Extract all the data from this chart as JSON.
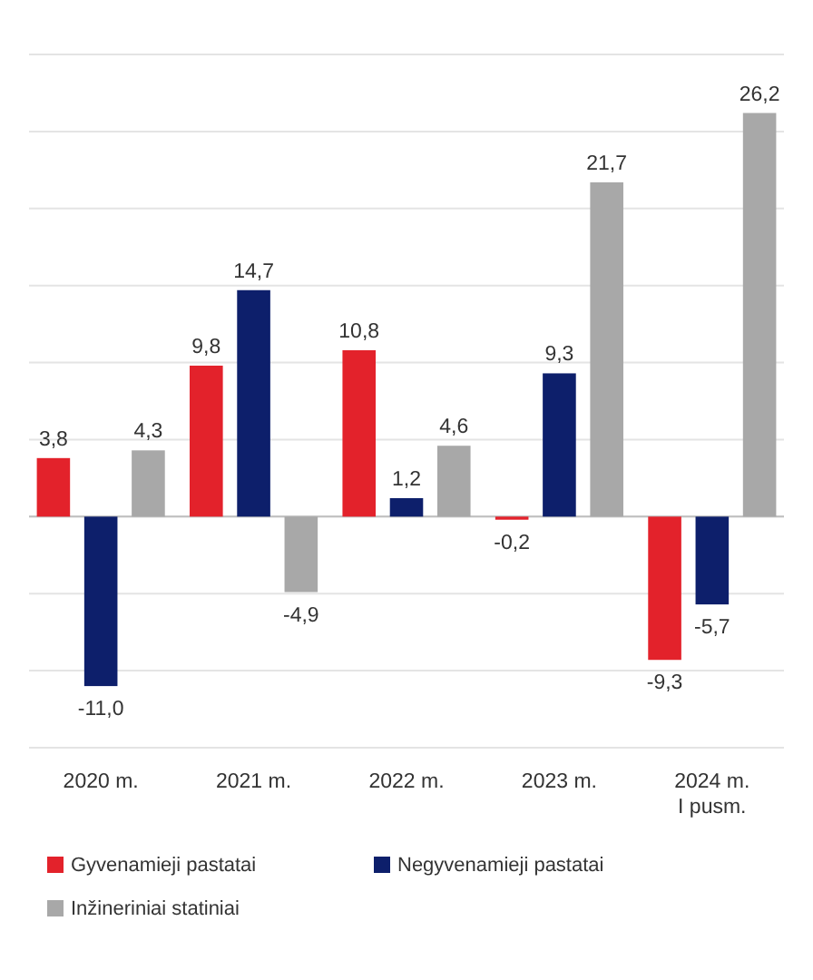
{
  "chart_data": {
    "type": "bar",
    "categories": [
      "2020 m.",
      "2021 m.",
      "2022 m.",
      "2023 m.",
      "2024 m. I pusm."
    ],
    "series": [
      {
        "name": "Gyvenamieji pastatai",
        "color": "#e3222b",
        "values": [
          3.8,
          9.8,
          10.8,
          -0.2,
          -9.3
        ],
        "value_labels": [
          "3,8",
          "9,8",
          "10,8",
          "-0,2",
          "-9,3"
        ]
      },
      {
        "name": "Negyvenamieji pastatai",
        "color": "#0d1f6b",
        "values": [
          -11.0,
          14.7,
          1.2,
          9.3,
          -5.7
        ],
        "value_labels": [
          "-11,0",
          "14,7",
          "1,2",
          "9,3",
          "-5,7"
        ]
      },
      {
        "name": "Inžineriniai statiniai",
        "color": "#a8a8a8",
        "values": [
          4.3,
          -4.9,
          4.6,
          21.7,
          26.2
        ],
        "value_labels": [
          "4,3",
          "-4,9",
          "4,6",
          "21,7",
          "26,2"
        ]
      }
    ],
    "ylim": [
      -15,
      30
    ],
    "yticks": [
      {
        "value": -15,
        "label": null
      },
      {
        "value": -10,
        "label": null
      },
      {
        "value": -5,
        "label": null
      },
      {
        "value": 0,
        "label": null
      },
      {
        "value": 5,
        "label": null
      },
      {
        "value": 10,
        "label": null
      },
      {
        "value": 15,
        "label": null
      },
      {
        "value": 20,
        "label": null
      },
      {
        "value": 25,
        "label": null
      },
      {
        "value": 30,
        "label": null
      }
    ],
    "grid": "y",
    "legend": "bottom",
    "tick_labels": "x"
  }
}
